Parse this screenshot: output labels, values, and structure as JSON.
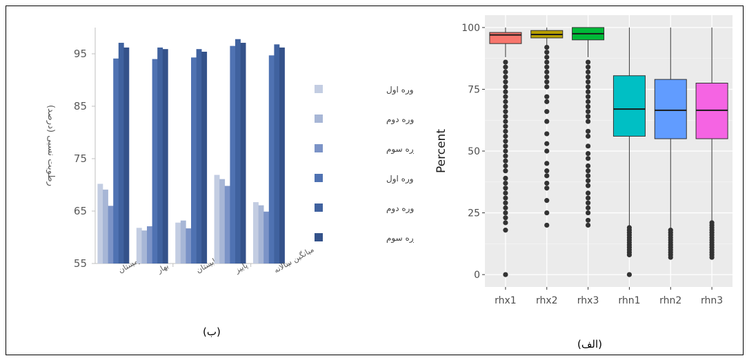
{
  "chart_data": [
    {
      "type": "bar",
      "caption": "(ب)",
      "ylabel": "رطوبت نسبی (درصد)",
      "ylim": [
        55,
        100
      ],
      "yticks": [
        55,
        65,
        75,
        85,
        95
      ],
      "categories": [
        "زمستان",
        "بهار",
        "تابستان",
        "پاییز",
        "میانگین سالانه"
      ],
      "legend_position": "right",
      "series": [
        {
          "name": "کمینه دوره اول",
          "color": "#c3cde2",
          "values": [
            70.2,
            61.8,
            62.8,
            71.9,
            66.7
          ]
        },
        {
          "name": "کمینه دوره دوم",
          "color": "#a7b6d6",
          "values": [
            69.1,
            61.3,
            63.2,
            71.1,
            66.1
          ]
        },
        {
          "name": "کمینه دوره سوم",
          "color": "#7b93c7",
          "values": [
            66.0,
            62.1,
            61.7,
            69.8,
            64.9
          ]
        },
        {
          "name": "بیشینه دوره اول",
          "color": "#4f72b2",
          "values": [
            94.1,
            94.0,
            94.3,
            96.5,
            94.7
          ]
        },
        {
          "name": "بیشینه دوره دوم",
          "color": "#40629f",
          "values": [
            97.1,
            96.2,
            95.9,
            97.8,
            96.8
          ]
        },
        {
          "name": "بیشینه دوره سوم",
          "color": "#34528a",
          "values": [
            96.2,
            95.9,
            95.4,
            97.1,
            96.2
          ]
        }
      ]
    },
    {
      "type": "boxplot",
      "caption": "(الف)",
      "ylabel": "Percent",
      "xlabel": "",
      "ylim": [
        0,
        100
      ],
      "yticks": [
        0,
        25,
        50,
        75,
        100
      ],
      "grid": true,
      "categories": [
        "rhx1",
        "rhx2",
        "rhx3",
        "rhn1",
        "rhn2",
        "rhn3"
      ],
      "boxes": [
        {
          "label": "rhx1",
          "color": "#f8766d",
          "whisker_low": 88,
          "q1": 93.5,
          "median": 97,
          "q3": 98,
          "whisker_high": 100,
          "outliers": [
            0,
            18,
            21,
            23,
            25,
            27,
            29,
            31,
            33,
            35,
            37,
            39,
            42,
            44,
            46,
            48,
            50,
            52,
            54,
            56,
            58,
            60,
            62,
            64,
            66,
            68,
            70,
            72,
            74,
            76,
            78,
            80,
            82,
            84,
            86
          ]
        },
        {
          "label": "rhx2",
          "color": "#b79f00",
          "whisker_low": 93,
          "q1": 95.8,
          "median": 97.2,
          "q3": 98.8,
          "whisker_high": 100,
          "outliers": [
            20,
            25,
            30,
            35,
            37,
            40,
            42,
            45,
            50,
            53,
            57,
            62,
            66,
            70,
            72,
            76,
            78,
            80,
            82,
            84,
            86,
            88,
            90,
            92
          ]
        },
        {
          "label": "rhx3",
          "color": "#00ba38",
          "whisker_low": 88,
          "q1": 95,
          "median": 97.5,
          "q3": 100,
          "whisker_high": 100,
          "outliers": [
            20,
            22,
            25,
            27,
            29,
            31,
            33,
            36,
            38,
            40,
            42,
            44,
            47,
            49,
            52,
            56,
            58,
            62,
            64,
            66,
            68,
            70,
            72,
            74,
            76,
            78,
            80,
            82,
            84,
            86
          ]
        },
        {
          "label": "rhn1",
          "color": "#00bfc4",
          "whisker_low": 20,
          "q1": 56,
          "median": 67,
          "q3": 80.5,
          "whisker_high": 100,
          "outliers": [
            0,
            8,
            9,
            10,
            11,
            12,
            13,
            14,
            15,
            16,
            17,
            18,
            19
          ]
        },
        {
          "label": "rhn2",
          "color": "#619cff",
          "whisker_low": 19,
          "q1": 55,
          "median": 66.5,
          "q3": 79,
          "whisker_high": 100,
          "outliers": [
            7,
            8,
            9,
            10,
            11,
            12,
            13,
            14,
            15,
            16,
            17,
            18
          ]
        },
        {
          "label": "rhn3",
          "color": "#f564e3",
          "whisker_low": 22,
          "q1": 55,
          "median": 66.5,
          "q3": 77.5,
          "whisker_high": 100,
          "outliers": [
            7,
            8,
            9,
            10,
            11,
            12,
            13,
            14,
            15,
            16,
            17,
            18,
            19,
            20,
            21
          ]
        }
      ]
    }
  ]
}
